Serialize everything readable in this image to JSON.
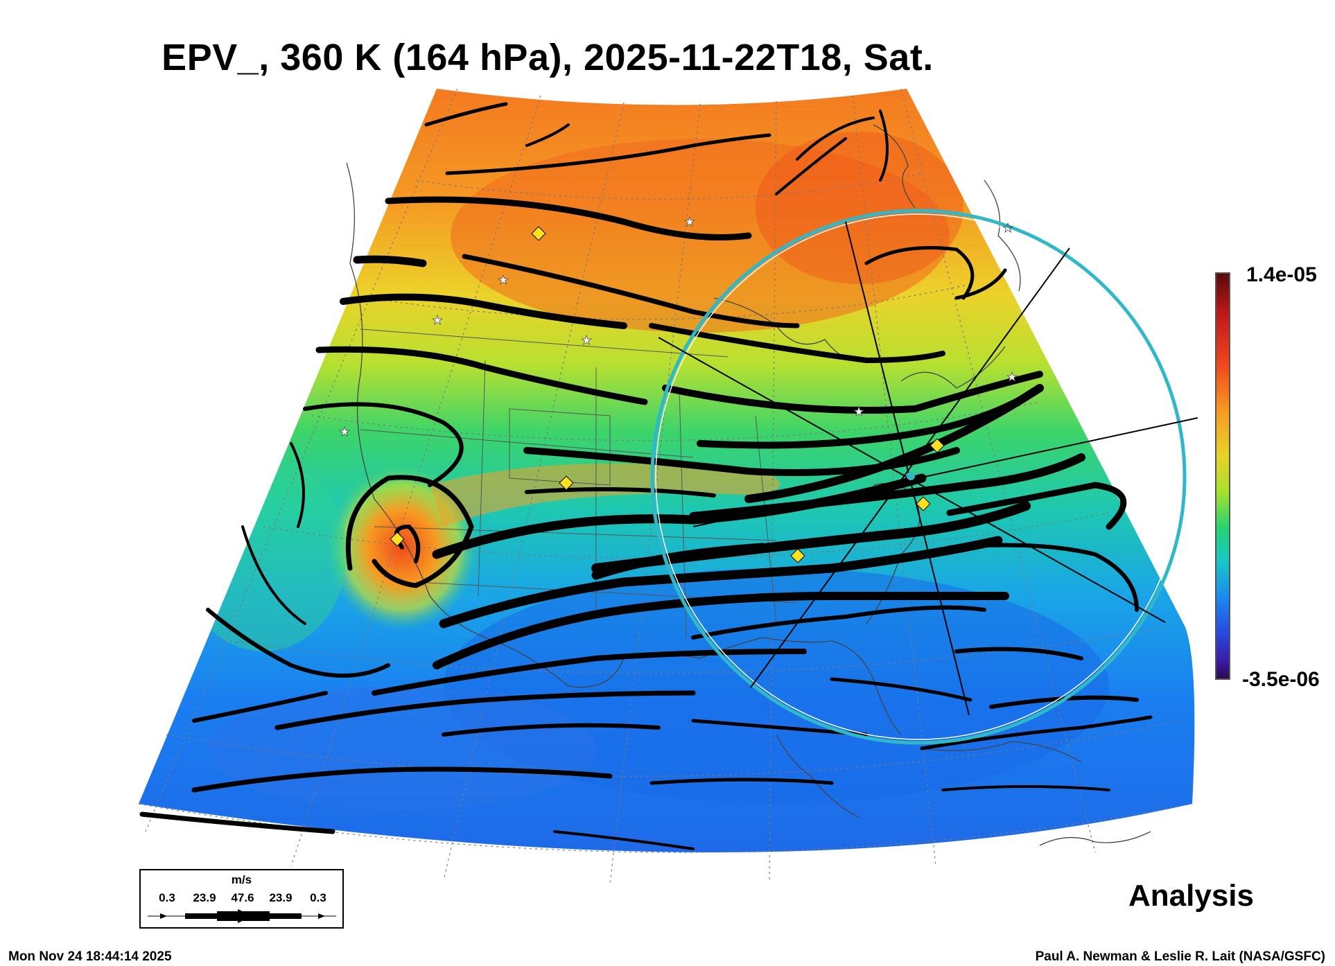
{
  "title": "EPV_, 360 K (164 hPa), 2025-11-22T18, Sat.",
  "colorbar": {
    "max_label": "1.4e-05",
    "min_label": "-3.5e-06"
  },
  "legend": {
    "unit": "m/s",
    "values": [
      "0.3",
      "23.9",
      "47.6",
      "23.9",
      "0.3"
    ]
  },
  "analysis_label": "Analysis",
  "timestamp": "Mon Nov 24 18:44:14 2025",
  "credit": "Paul A. Newman & Leslie R. Lait (NASA/GSFC)",
  "colors": {
    "ring": "#30b8c8",
    "diamond": "#ffe020",
    "streamline": "#000000"
  }
}
